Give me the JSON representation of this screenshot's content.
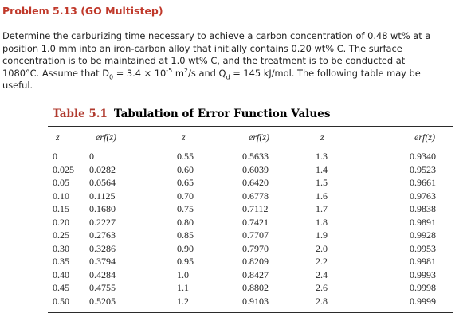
{
  "problem": {
    "title": "Problem 5.13 (GO Multistep)",
    "line1": "Determine the carburizing time necessary to achieve a carbon concentration of 0.48 wt% at a",
    "line2": "position 1.0 mm into an iron-carbon alloy that initially contains 0.20 wt% C. The surface",
    "line3": "concentration is to be maintained at 1.0 wt% C, and the treatment is to be conducted at",
    "line4_a": "1080°C. Assume that D",
    "line4_d_sub": "0",
    "line4_b": " = 3.4 × 10",
    "line4_exp": "-5",
    "line4_c": " m",
    "line4_sq": "2",
    "line4_d": "/s and Q",
    "line4_q_sub": "d",
    "line4_e": " = 145 kJ/mol. The following table may be",
    "line5": "useful."
  },
  "table": {
    "number": "Table 5.1",
    "caption": "Tabulation of Error Function Values",
    "headers": [
      "z",
      "erf(z)",
      "z",
      "erf(z)",
      "z",
      "erf(z)"
    ],
    "rows": [
      [
        "0",
        "0",
        "0.55",
        "0.5633",
        "1.3",
        "0.9340"
      ],
      [
        "0.025",
        "0.0282",
        "0.60",
        "0.6039",
        "1.4",
        "0.9523"
      ],
      [
        "0.05",
        "0.0564",
        "0.65",
        "0.6420",
        "1.5",
        "0.9661"
      ],
      [
        "0.10",
        "0.1125",
        "0.70",
        "0.6778",
        "1.6",
        "0.9763"
      ],
      [
        "0.15",
        "0.1680",
        "0.75",
        "0.7112",
        "1.7",
        "0.9838"
      ],
      [
        "0.20",
        "0.2227",
        "0.80",
        "0.7421",
        "1.8",
        "0.9891"
      ],
      [
        "0.25",
        "0.2763",
        "0.85",
        "0.7707",
        "1.9",
        "0.9928"
      ],
      [
        "0.30",
        "0.3286",
        "0.90",
        "0.7970",
        "2.0",
        "0.9953"
      ],
      [
        "0.35",
        "0.3794",
        "0.95",
        "0.8209",
        "2.2",
        "0.9981"
      ],
      [
        "0.40",
        "0.4284",
        "1.0",
        "0.8427",
        "2.4",
        "0.9993"
      ],
      [
        "0.45",
        "0.4755",
        "1.1",
        "0.8802",
        "2.6",
        "0.9998"
      ],
      [
        "0.50",
        "0.5205",
        "1.2",
        "0.9103",
        "2.8",
        "0.9999"
      ]
    ]
  },
  "colors": {
    "title_red": "#c0392b",
    "table_number_red": "#b03a2e",
    "text": "#222222"
  }
}
